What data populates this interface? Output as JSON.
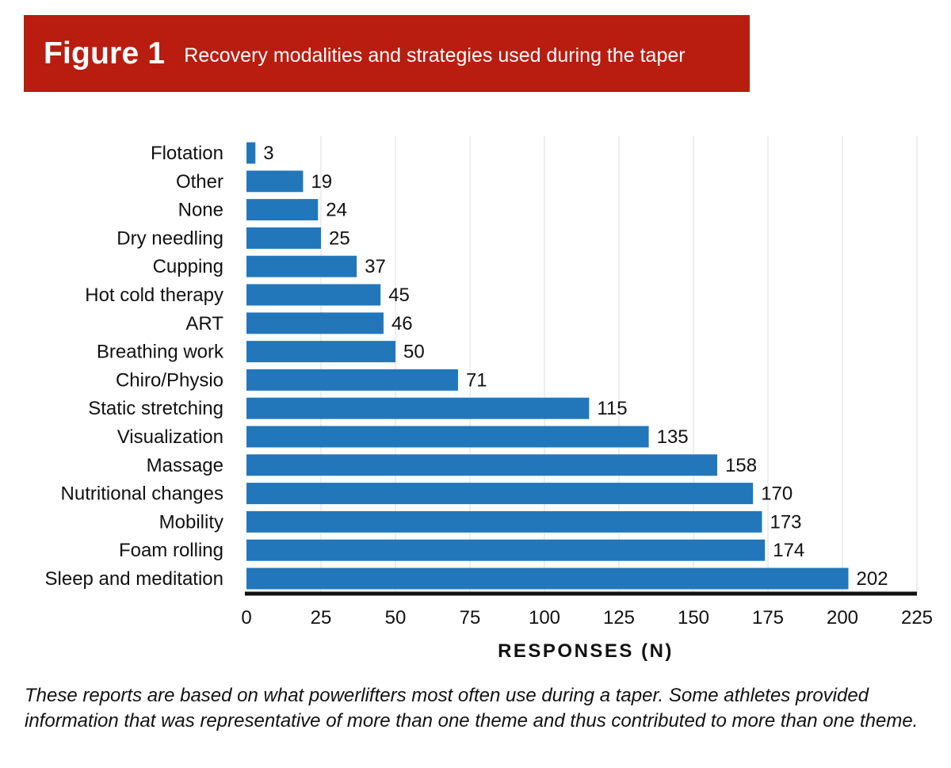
{
  "header": {
    "figure_label": "Figure 1",
    "figure_title": "Recovery modalities and strategies used during the taper"
  },
  "caption": "These reports are based on what powerlifters most often use during a taper. Some athletes provided information that was representative of more than one theme and thus contributed to more than one theme.",
  "colors": {
    "banner": "#b81d10",
    "bar": "#2277bb",
    "grid": "#dddddd",
    "axis": "#111111"
  },
  "chart_data": {
    "type": "bar",
    "orientation": "horizontal",
    "categories": [
      "Flotation",
      "Other",
      "None",
      "Dry needling",
      "Cupping",
      "Hot cold therapy",
      "ART",
      "Breathing work",
      "Chiro/Physio",
      "Static stretching",
      "Visualization",
      "Massage",
      "Nutritional changes",
      "Mobility",
      "Foam rolling",
      "Sleep and meditation"
    ],
    "values": [
      3,
      19,
      24,
      25,
      37,
      45,
      46,
      50,
      71,
      115,
      135,
      158,
      170,
      173,
      174,
      202
    ],
    "xlabel": "RESPONSES (N)",
    "ylabel": "",
    "xlim": [
      0,
      225
    ],
    "xticks": [
      0,
      25,
      50,
      75,
      100,
      125,
      150,
      175,
      200,
      225
    ],
    "grid": true,
    "data_labels": true
  }
}
